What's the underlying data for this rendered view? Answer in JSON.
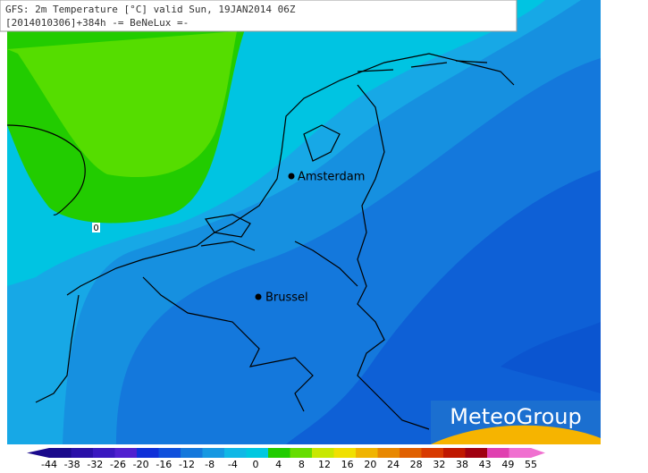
{
  "header": {
    "line1": "GFS: 2m Temperature [°C] valid Sun, 19JAN2014 06Z",
    "line2": "[2014010306]+384h -= BeNeLux =-"
  },
  "cities": [
    {
      "name": "Amsterdam"
    },
    {
      "name": "Brussel"
    }
  ],
  "contour_label": "0",
  "logo": "MeteoGroup",
  "colorbar": {
    "ticks": [
      -44,
      -38,
      -32,
      -26,
      -20,
      -16,
      -12,
      -8,
      -4,
      0,
      4,
      8,
      12,
      16,
      20,
      24,
      28,
      32,
      38,
      43,
      49,
      55
    ],
    "colors": [
      "#1a0a8c",
      "#2a10a8",
      "#3a18c0",
      "#5020d0",
      "#1030d8",
      "#1050dc",
      "#1478dc",
      "#1698e2",
      "#10b8e6",
      "#00c8e0",
      "#22cc00",
      "#66dd00",
      "#c8e800",
      "#f0e000",
      "#f0b400",
      "#e88800",
      "#e06000",
      "#d83a00",
      "#c01800",
      "#a00010",
      "#e040b0",
      "#f070d0"
    ]
  }
}
